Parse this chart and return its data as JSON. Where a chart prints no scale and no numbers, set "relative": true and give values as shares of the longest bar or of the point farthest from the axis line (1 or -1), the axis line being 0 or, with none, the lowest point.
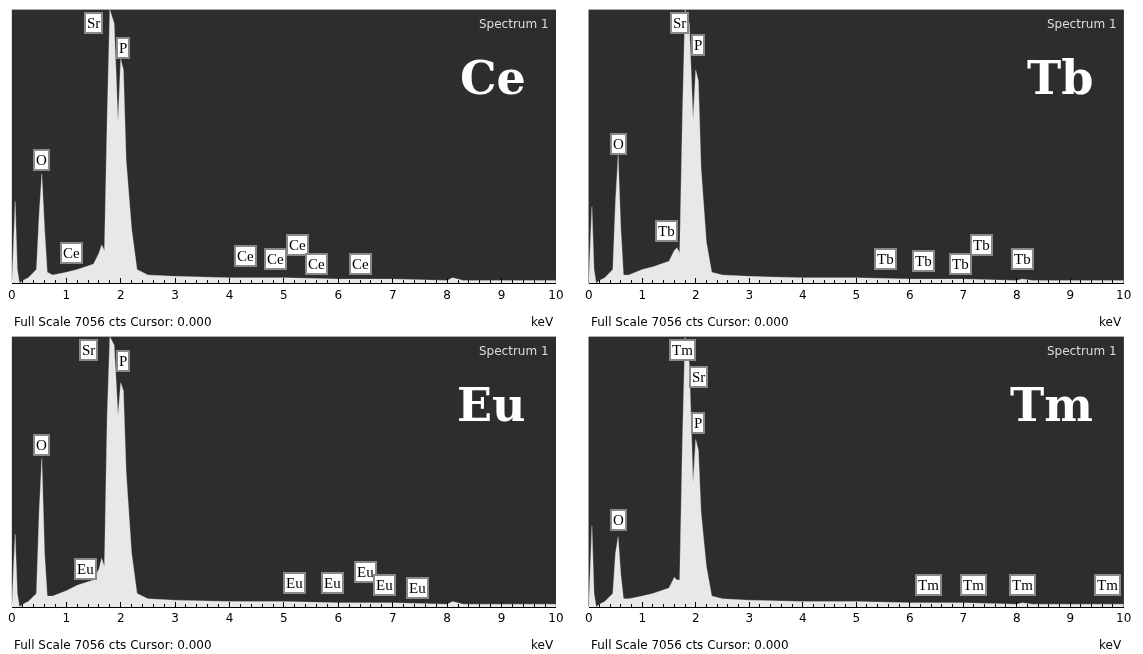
{
  "chart_data": [
    {
      "type": "area",
      "relative": true,
      "xlabel": "keV",
      "xlim": [
        0,
        10
      ],
      "xticks": [
        0,
        1,
        2,
        3,
        4,
        5,
        6,
        7,
        8,
        9,
        10
      ],
      "grid": false,
      "x": [
        0,
        0.03,
        0.06,
        0.1,
        0.14,
        0.2,
        0.3,
        0.45,
        0.5,
        0.55,
        0.6,
        0.65,
        0.75,
        1.0,
        1.2,
        1.5,
        1.6,
        1.65,
        1.7,
        1.75,
        1.8,
        1.88,
        1.95,
        2.0,
        2.05,
        2.1,
        2.2,
        2.3,
        2.5,
        3,
        4,
        5,
        6,
        7,
        8,
        8.1,
        8.3,
        9,
        10
      ],
      "series": [
        {
          "color": "#e8e8e8",
          "values": [
            0,
            0.15,
            0.3,
            0.05,
            0,
            0.01,
            0.02,
            0.05,
            0.25,
            0.4,
            0.2,
            0.04,
            0.03,
            0.04,
            0.05,
            0.07,
            0.11,
            0.14,
            0.12,
            0.6,
            1.0,
            0.95,
            0.59,
            0.82,
            0.78,
            0.45,
            0.2,
            0.05,
            0.03,
            0.025,
            0.02,
            0.02,
            0.015,
            0.015,
            0.01,
            0.02,
            0.01,
            0.01,
            0.01
          ]
        }
      ],
      "annotations": [
        "Spectrum 1",
        "Ce",
        "Full Scale 7056 cts Cursor: 0.000",
        {
          "text": "Sr",
          "x": 1.5,
          "y": 0.95
        },
        {
          "text": "P",
          "x": 2.05,
          "y": 0.86
        },
        {
          "text": "O",
          "x": 0.55,
          "y": 0.45
        },
        {
          "text": "Ce",
          "x": 1.1,
          "y": 0.11
        },
        {
          "text": "Ce",
          "x": 4.3,
          "y": 0.1
        },
        {
          "text": "Ce",
          "x": 4.85,
          "y": 0.09
        },
        {
          "text": "Ce",
          "x": 5.25,
          "y": 0.14
        },
        {
          "text": "Ce",
          "x": 5.6,
          "y": 0.07
        },
        {
          "text": "Ce",
          "x": 6.4,
          "y": 0.07
        }
      ]
    },
    {
      "type": "area",
      "relative": true,
      "xlabel": "keV",
      "xlim": [
        0,
        10
      ],
      "xticks": [
        0,
        1,
        2,
        3,
        4,
        5,
        6,
        7,
        8,
        9,
        10
      ],
      "grid": false,
      "x": [
        0,
        0.03,
        0.06,
        0.1,
        0.14,
        0.2,
        0.3,
        0.45,
        0.5,
        0.55,
        0.6,
        0.65,
        0.75,
        1.0,
        1.2,
        1.5,
        1.6,
        1.65,
        1.7,
        1.75,
        1.8,
        1.88,
        1.95,
        2.0,
        2.05,
        2.1,
        2.2,
        2.3,
        2.5,
        3,
        4,
        5,
        6,
        7,
        8,
        8.1,
        8.3,
        9,
        10
      ],
      "series": [
        {
          "color": "#e8e8e8",
          "values": [
            0,
            0.15,
            0.28,
            0.05,
            0,
            0.01,
            0.02,
            0.05,
            0.3,
            0.47,
            0.2,
            0.03,
            0.03,
            0.05,
            0.06,
            0.08,
            0.12,
            0.13,
            0.11,
            0.6,
            1.0,
            0.95,
            0.6,
            0.78,
            0.74,
            0.42,
            0.15,
            0.04,
            0.03,
            0.025,
            0.02,
            0.02,
            0.015,
            0.015,
            0.01,
            0.015,
            0.01,
            0.01,
            0.01
          ]
        }
      ],
      "annotations": [
        "Spectrum 1",
        "Tb",
        "Full Scale 7056 cts Cursor: 0.000",
        {
          "text": "Sr",
          "x": 1.7,
          "y": 0.95
        },
        {
          "text": "P",
          "x": 2.05,
          "y": 0.87
        },
        {
          "text": "O",
          "x": 0.55,
          "y": 0.51
        },
        {
          "text": "Tb",
          "x": 1.45,
          "y": 0.19
        },
        {
          "text": "Tb",
          "x": 5.55,
          "y": 0.09
        },
        {
          "text": "Tb",
          "x": 6.25,
          "y": 0.08
        },
        {
          "text": "Tb",
          "x": 6.95,
          "y": 0.07
        },
        {
          "text": "Tb",
          "x": 7.35,
          "y": 0.14
        },
        {
          "text": "Tb",
          "x": 8.1,
          "y": 0.09
        }
      ]
    },
    {
      "type": "area",
      "relative": true,
      "xlabel": "keV",
      "xlim": [
        0,
        10
      ],
      "xticks": [
        0,
        1,
        2,
        3,
        4,
        5,
        6,
        7,
        8,
        9,
        10
      ],
      "grid": false,
      "x": [
        0,
        0.03,
        0.06,
        0.1,
        0.14,
        0.2,
        0.3,
        0.45,
        0.5,
        0.55,
        0.6,
        0.65,
        0.75,
        1.0,
        1.2,
        1.5,
        1.6,
        1.65,
        1.7,
        1.75,
        1.8,
        1.88,
        1.95,
        2.0,
        2.05,
        2.1,
        2.2,
        2.3,
        2.5,
        3,
        4,
        5,
        6,
        7,
        8,
        8.1,
        8.3,
        9,
        10
      ],
      "series": [
        {
          "color": "#e8e8e8",
          "values": [
            0,
            0.15,
            0.27,
            0.05,
            0,
            0.01,
            0.02,
            0.05,
            0.35,
            0.55,
            0.2,
            0.04,
            0.04,
            0.06,
            0.08,
            0.1,
            0.14,
            0.18,
            0.15,
            0.7,
            1.0,
            0.97,
            0.71,
            0.83,
            0.8,
            0.5,
            0.2,
            0.05,
            0.03,
            0.025,
            0.02,
            0.02,
            0.015,
            0.015,
            0.01,
            0.02,
            0.01,
            0.01,
            0.01
          ]
        }
      ],
      "annotations": [
        "Spectrum 1",
        "Eu",
        "Full Scale 7056 cts Cursor: 0.000",
        {
          "text": "Sr",
          "x": 1.4,
          "y": 0.95
        },
        {
          "text": "P",
          "x": 2.05,
          "y": 0.91
        },
        {
          "text": "O",
          "x": 0.55,
          "y": 0.6
        },
        {
          "text": "Eu",
          "x": 1.35,
          "y": 0.14
        },
        {
          "text": "Eu",
          "x": 5.2,
          "y": 0.09
        },
        {
          "text": "Eu",
          "x": 5.9,
          "y": 0.09
        },
        {
          "text": "Eu",
          "x": 6.5,
          "y": 0.13
        },
        {
          "text": "Eu",
          "x": 6.85,
          "y": 0.08
        },
        {
          "text": "Eu",
          "x": 7.45,
          "y": 0.07
        }
      ]
    },
    {
      "type": "area",
      "relative": true,
      "xlabel": "keV",
      "xlim": [
        0,
        10
      ],
      "xticks": [
        0,
        1,
        2,
        3,
        4,
        5,
        6,
        7,
        8,
        9,
        10
      ],
      "grid": false,
      "x": [
        0,
        0.03,
        0.06,
        0.1,
        0.14,
        0.2,
        0.3,
        0.45,
        0.5,
        0.55,
        0.6,
        0.65,
        0.75,
        1.0,
        1.2,
        1.5,
        1.6,
        1.65,
        1.7,
        1.75,
        1.8,
        1.88,
        1.95,
        2.0,
        2.05,
        2.1,
        2.2,
        2.3,
        2.5,
        3,
        4,
        5,
        6,
        7,
        8,
        8.1,
        8.3,
        9,
        10
      ],
      "series": [
        {
          "color": "#e8e8e8",
          "values": [
            0,
            0.15,
            0.3,
            0.05,
            0,
            0.01,
            0.02,
            0.05,
            0.2,
            0.26,
            0.12,
            0.03,
            0.03,
            0.04,
            0.05,
            0.07,
            0.11,
            0.1,
            0.1,
            0.6,
            1.0,
            0.9,
            0.46,
            0.62,
            0.58,
            0.35,
            0.15,
            0.04,
            0.03,
            0.025,
            0.02,
            0.02,
            0.015,
            0.015,
            0.01,
            0.015,
            0.01,
            0.01,
            0.01
          ]
        }
      ],
      "annotations": [
        "Spectrum 1",
        "Tm",
        "Full Scale 7056 cts Cursor: 0.000",
        {
          "text": "Tm",
          "x": 1.75,
          "y": 0.95
        },
        {
          "text": "Sr",
          "x": 2.05,
          "y": 0.85
        },
        {
          "text": "P",
          "x": 2.05,
          "y": 0.68
        },
        {
          "text": "O",
          "x": 0.55,
          "y": 0.32
        },
        {
          "text": "Tm",
          "x": 6.35,
          "y": 0.08
        },
        {
          "text": "Tm",
          "x": 7.2,
          "y": 0.08
        },
        {
          "text": "Tm",
          "x": 8.1,
          "y": 0.08
        },
        {
          "text": "Tm",
          "x": 9.7,
          "y": 0.08
        }
      ]
    }
  ]
}
